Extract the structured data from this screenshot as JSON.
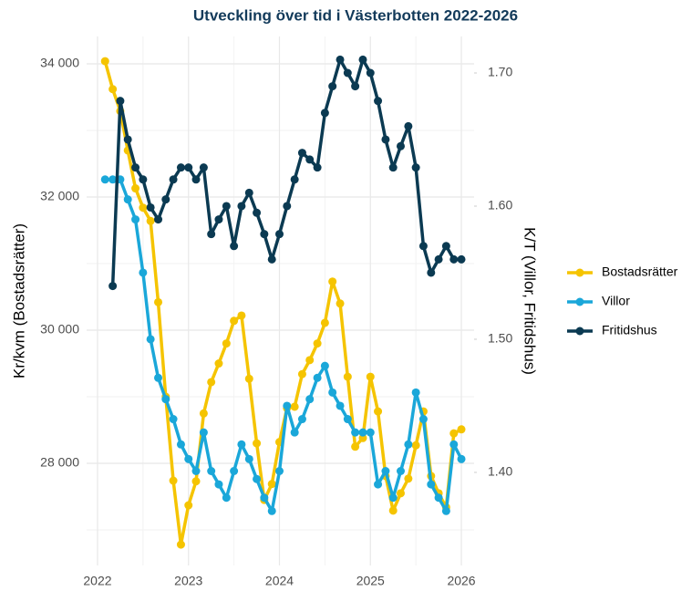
{
  "chart_data": {
    "type": "line",
    "title": "Utveckling över tid i Västerbotten 2022-2026",
    "y_label": "Kr/kvm (Bostadsrätter)",
    "y2_label": "K/T (Villor, Fritidshus)",
    "x": [
      2022.083,
      2022.167,
      2022.25,
      2022.333,
      2022.417,
      2022.5,
      2022.583,
      2022.667,
      2022.75,
      2022.833,
      2022.917,
      2023.0,
      2023.083,
      2023.167,
      2023.25,
      2023.333,
      2023.417,
      2023.5,
      2023.583,
      2023.667,
      2023.75,
      2023.833,
      2023.917,
      2024.0,
      2024.083,
      2024.167,
      2024.25,
      2024.333,
      2024.417,
      2024.5,
      2024.583,
      2024.667,
      2024.75,
      2024.833,
      2024.917,
      2025.0,
      2025.083,
      2025.167,
      2025.25,
      2025.333,
      2025.417,
      2025.5,
      2025.583,
      2025.667,
      2025.75,
      2025.833,
      2025.917,
      2026.0
    ],
    "series": [
      {
        "name": "Bostadsrätter",
        "color": "#f5c400",
        "axis": "y",
        "values": [
          34040,
          33620,
          33290,
          32700,
          32130,
          31840,
          31640,
          30420,
          29000,
          27740,
          26780,
          27370,
          27730,
          28750,
          29220,
          29500,
          29800,
          30140,
          30220,
          29270,
          28300,
          27450,
          27690,
          28320,
          28830,
          28850,
          29340,
          29550,
          29800,
          30110,
          30730,
          30400,
          29300,
          28250,
          28380,
          29300,
          28780,
          27810,
          27290,
          27550,
          27770,
          28270,
          28780,
          27810,
          27550,
          27340,
          28450,
          28510
        ]
      },
      {
        "name": "Villor",
        "color": "#1aa7d9",
        "axis": "y2",
        "values": [
          1.62,
          1.62,
          1.62,
          1.605,
          1.59,
          1.55,
          1.5,
          1.471,
          1.455,
          1.44,
          1.421,
          1.41,
          1.401,
          1.43,
          1.401,
          1.391,
          1.381,
          1.401,
          1.421,
          1.41,
          1.395,
          1.381,
          1.371,
          1.401,
          1.45,
          1.43,
          1.44,
          1.455,
          1.471,
          1.48,
          1.46,
          1.45,
          1.44,
          1.43,
          1.43,
          1.43,
          1.391,
          1.401,
          1.381,
          1.401,
          1.421,
          1.46,
          1.44,
          1.391,
          1.381,
          1.371,
          1.421,
          1.41
        ]
      },
      {
        "name": "Fritidshus",
        "color": "#0b3a52",
        "axis": "y2",
        "values": [
          null,
          1.54,
          1.679,
          1.65,
          1.629,
          1.62,
          1.599,
          1.59,
          1.605,
          1.62,
          1.629,
          1.629,
          1.62,
          1.629,
          1.579,
          1.59,
          1.6,
          1.57,
          1.6,
          1.61,
          1.595,
          1.579,
          1.56,
          1.579,
          1.6,
          1.62,
          1.64,
          1.635,
          1.629,
          1.67,
          1.69,
          1.71,
          1.7,
          1.69,
          1.71,
          1.7,
          1.679,
          1.65,
          1.629,
          1.645,
          1.66,
          1.629,
          1.57,
          1.55,
          1.56,
          1.57,
          1.56,
          1.56
        ]
      }
    ],
    "xlim": [
      2021.88,
      2026.14
    ],
    "xticks": [
      2022,
      2023,
      2024,
      2025,
      2026
    ],
    "ylim": [
      26466,
      34411
    ],
    "yticks": [
      {
        "value": 28000,
        "label": "28 000"
      },
      {
        "value": 30000,
        "label": "30 000"
      },
      {
        "value": 32000,
        "label": "32 000"
      },
      {
        "value": 34000,
        "label": "34 000"
      }
    ],
    "y2lim": [
      1.3301,
      1.7274
    ],
    "y2ticks": [
      {
        "value": 1.4,
        "label": "1.40"
      },
      {
        "value": 1.5,
        "label": "1.50"
      },
      {
        "value": 1.6,
        "label": "1.60"
      },
      {
        "value": 1.7,
        "label": "1.70"
      }
    ],
    "grid": true,
    "legend": "right"
  }
}
